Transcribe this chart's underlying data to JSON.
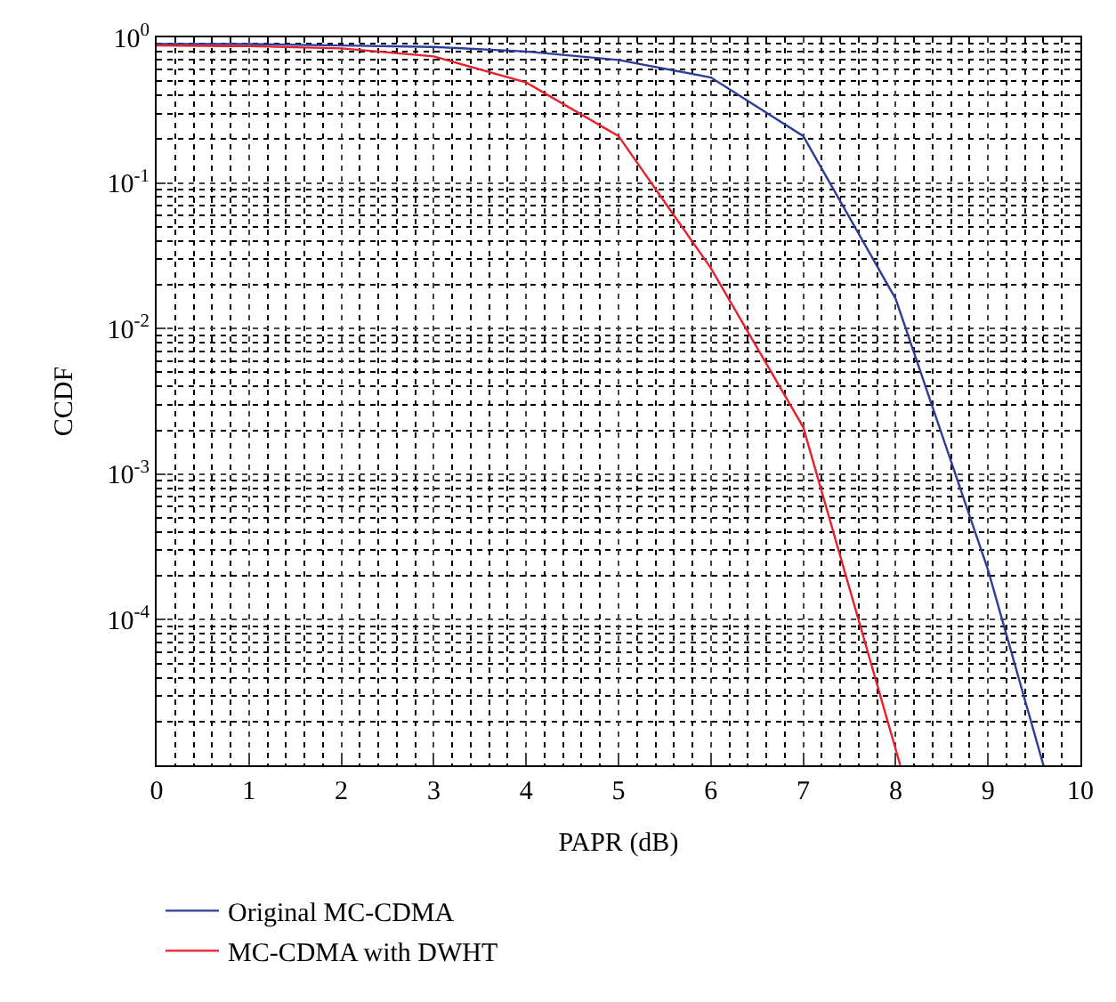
{
  "chart_data": {
    "type": "line",
    "xlabel": "PAPR (dB)",
    "ylabel": "CCDF",
    "log": "y",
    "grid": true,
    "line_style": "solid",
    "marker": "none",
    "legend": "bottom",
    "xlim": [
      0,
      10
    ],
    "xticks": [
      0,
      1,
      2,
      3,
      4,
      5,
      6,
      7,
      8,
      9,
      10
    ],
    "ylim": [
      1e-05,
      1
    ],
    "yticks": [
      {
        "value": 1,
        "label": "10$^{0}$"
      },
      {
        "value": 0.1,
        "label": "10$^{-1}$"
      },
      {
        "value": 0.01,
        "label": "10$^{-2}$"
      },
      {
        "value": 0.001,
        "label": "10$^{-3}$"
      },
      {
        "value": 0.0001,
        "label": "10$^{-4}$"
      }
    ],
    "series": [
      {
        "name": "Original MC-CDMA",
        "color": "#2b3f9a",
        "x": [
          0,
          1,
          2,
          3,
          4,
          5,
          6,
          7,
          8,
          9,
          9.6
        ],
        "values": [
          0.9,
          0.9,
          0.88,
          0.86,
          0.8,
          0.7,
          0.53,
          0.21,
          0.016,
          0.00022,
          1e-05
        ]
      },
      {
        "name": "MC-CDMA with DWHT",
        "color": "#e8202a",
        "x": [
          0,
          1,
          2,
          3,
          4,
          5,
          6,
          7,
          8.05
        ],
        "values": [
          0.88,
          0.87,
          0.84,
          0.74,
          0.49,
          0.21,
          0.026,
          0.0021,
          1e-05
        ]
      }
    ]
  }
}
